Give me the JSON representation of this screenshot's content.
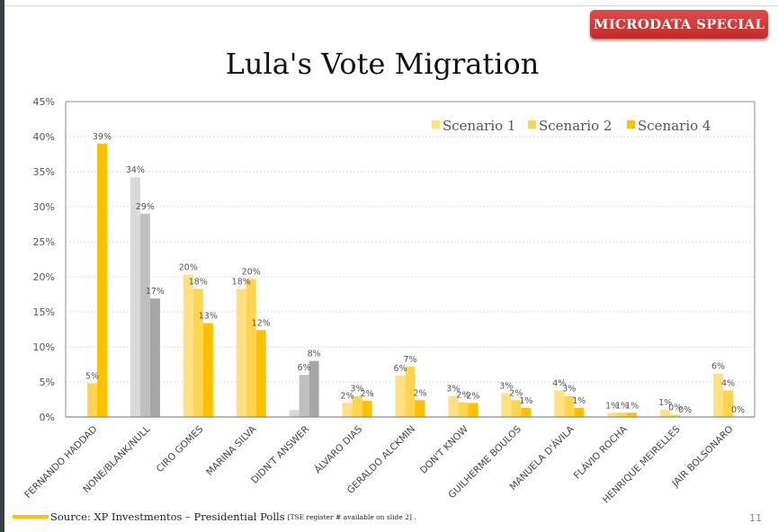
{
  "badge": {
    "label": "MICRODATA SPECIAL",
    "color": "#d03a38"
  },
  "footer": {
    "source": "Source: XP Investmentos – Presidential Polls",
    "note": "[TSE register # available on slide 2] .",
    "page_number": "11"
  },
  "chart_data": {
    "type": "bar",
    "title": "Lula's Vote Migration",
    "xlabel": "",
    "ylabel": "",
    "ylim": [
      0,
      45
    ],
    "y_ticks": [
      "0%",
      "5%",
      "10%",
      "15%",
      "20%",
      "25%",
      "30%",
      "35%",
      "40%",
      "45%"
    ],
    "grid": true,
    "legend_position": "top-right",
    "categories": [
      "FERNANDO HADDAD",
      "NONE/BLANK/NULL",
      "CIRO GOMES",
      "MARINA SILVA",
      "DIDN'T ANSWER",
      "ÁLVARO DIAS",
      "GERALDO ALCKMIN",
      "DON'T KNOW",
      "GUILHERME BOULOS",
      "MANUELA D'ÁVILA",
      "FLÁVIO ROCHA",
      "HENRIQUE MEIRELLES",
      "JAIR BOLSONARO"
    ],
    "series": [
      {
        "name": "Scenario 1",
        "color": "#ffe083",
        "values": [
          null,
          34.2,
          20.3,
          18.3,
          1.0,
          2.0,
          5.9,
          3.0,
          3.4,
          3.8,
          0.6,
          1.0,
          6.2
        ]
      },
      {
        "name": "Scenario 2",
        "color": "#ffd54f",
        "values": [
          4.8,
          29.0,
          18.3,
          19.7,
          6.0,
          3.0,
          7.2,
          2.1,
          2.4,
          3.0,
          0.6,
          0.3,
          3.8
        ]
      },
      {
        "name": "Scenario 4",
        "color": "#ffc000",
        "values": [
          39.0,
          16.9,
          13.4,
          12.4,
          8.0,
          2.3,
          2.4,
          2.0,
          1.3,
          1.3,
          0.6,
          0.0,
          0.0
        ]
      }
    ],
    "data_labels": [
      [
        "",
        "5%",
        "39%"
      ],
      [
        "34%",
        "29%",
        "17%"
      ],
      [
        "20%",
        "18%",
        "13%"
      ],
      [
        "18%",
        "20%",
        "12%"
      ],
      [
        "",
        "6%",
        "8%"
      ],
      [
        "2%",
        "3%",
        "2%"
      ],
      [
        "6%",
        "7%",
        "2%"
      ],
      [
        "3%",
        "2%",
        "2%"
      ],
      [
        "3%",
        "2%",
        "1%"
      ],
      [
        "4%",
        "3%",
        "1%"
      ],
      [
        "1%",
        "1%",
        "1%"
      ],
      [
        "1%",
        "0%",
        "0%"
      ],
      [
        "6%",
        "4%",
        "0%"
      ]
    ],
    "grey_categories": [
      "NONE/BLANK/NULL",
      "DIDN'T ANSWER"
    ],
    "grey_colors": [
      "#d9d9d9",
      "#bfbfbf",
      "#a6a6a6"
    ]
  }
}
